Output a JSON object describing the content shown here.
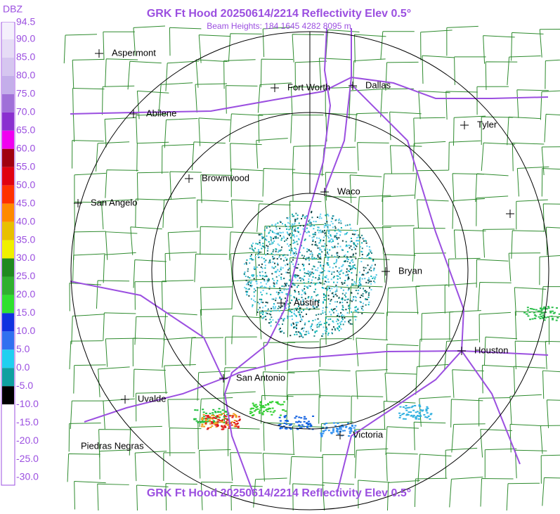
{
  "header": {
    "title": "GRK Ft Hood 20250614/2214 Reflectivity Elev 0.5°",
    "subtitle": "Beam Heights: 184 1645 4282 8095 m"
  },
  "footer": {
    "title": "GRK Ft Hood 20250614/2214 Reflectivity Elev 0.5°"
  },
  "legend": {
    "unit": "DBZ",
    "labels": [
      "94.5",
      "90.0",
      "85.0",
      "80.0",
      "75.0",
      "70.0",
      "65.0",
      "60.0",
      "55.0",
      "50.0",
      "45.0",
      "40.0",
      "35.0",
      "30.0",
      "25.0",
      "20.0",
      "15.0",
      "10.0",
      "5.0",
      "0.0",
      "-5.0",
      "-10.0",
      "-15.0",
      "-20.0",
      "-25.0",
      "-30.0"
    ]
  },
  "cities": [
    {
      "label": "Aspermont"
    },
    {
      "label": "Fort Worth"
    },
    {
      "label": "Dallas"
    },
    {
      "label": "Abilene"
    },
    {
      "label": "Tyler"
    },
    {
      "label": "Brownwood"
    },
    {
      "label": "Waco"
    },
    {
      "label": "San Angelo"
    },
    {
      "label": "Bryan"
    },
    {
      "label": "Austin"
    },
    {
      "label": "Houston"
    },
    {
      "label": "San Antonio"
    },
    {
      "label": "Uvalde"
    },
    {
      "label": "Victoria"
    },
    {
      "label": "Piedras Negras"
    }
  ]
}
